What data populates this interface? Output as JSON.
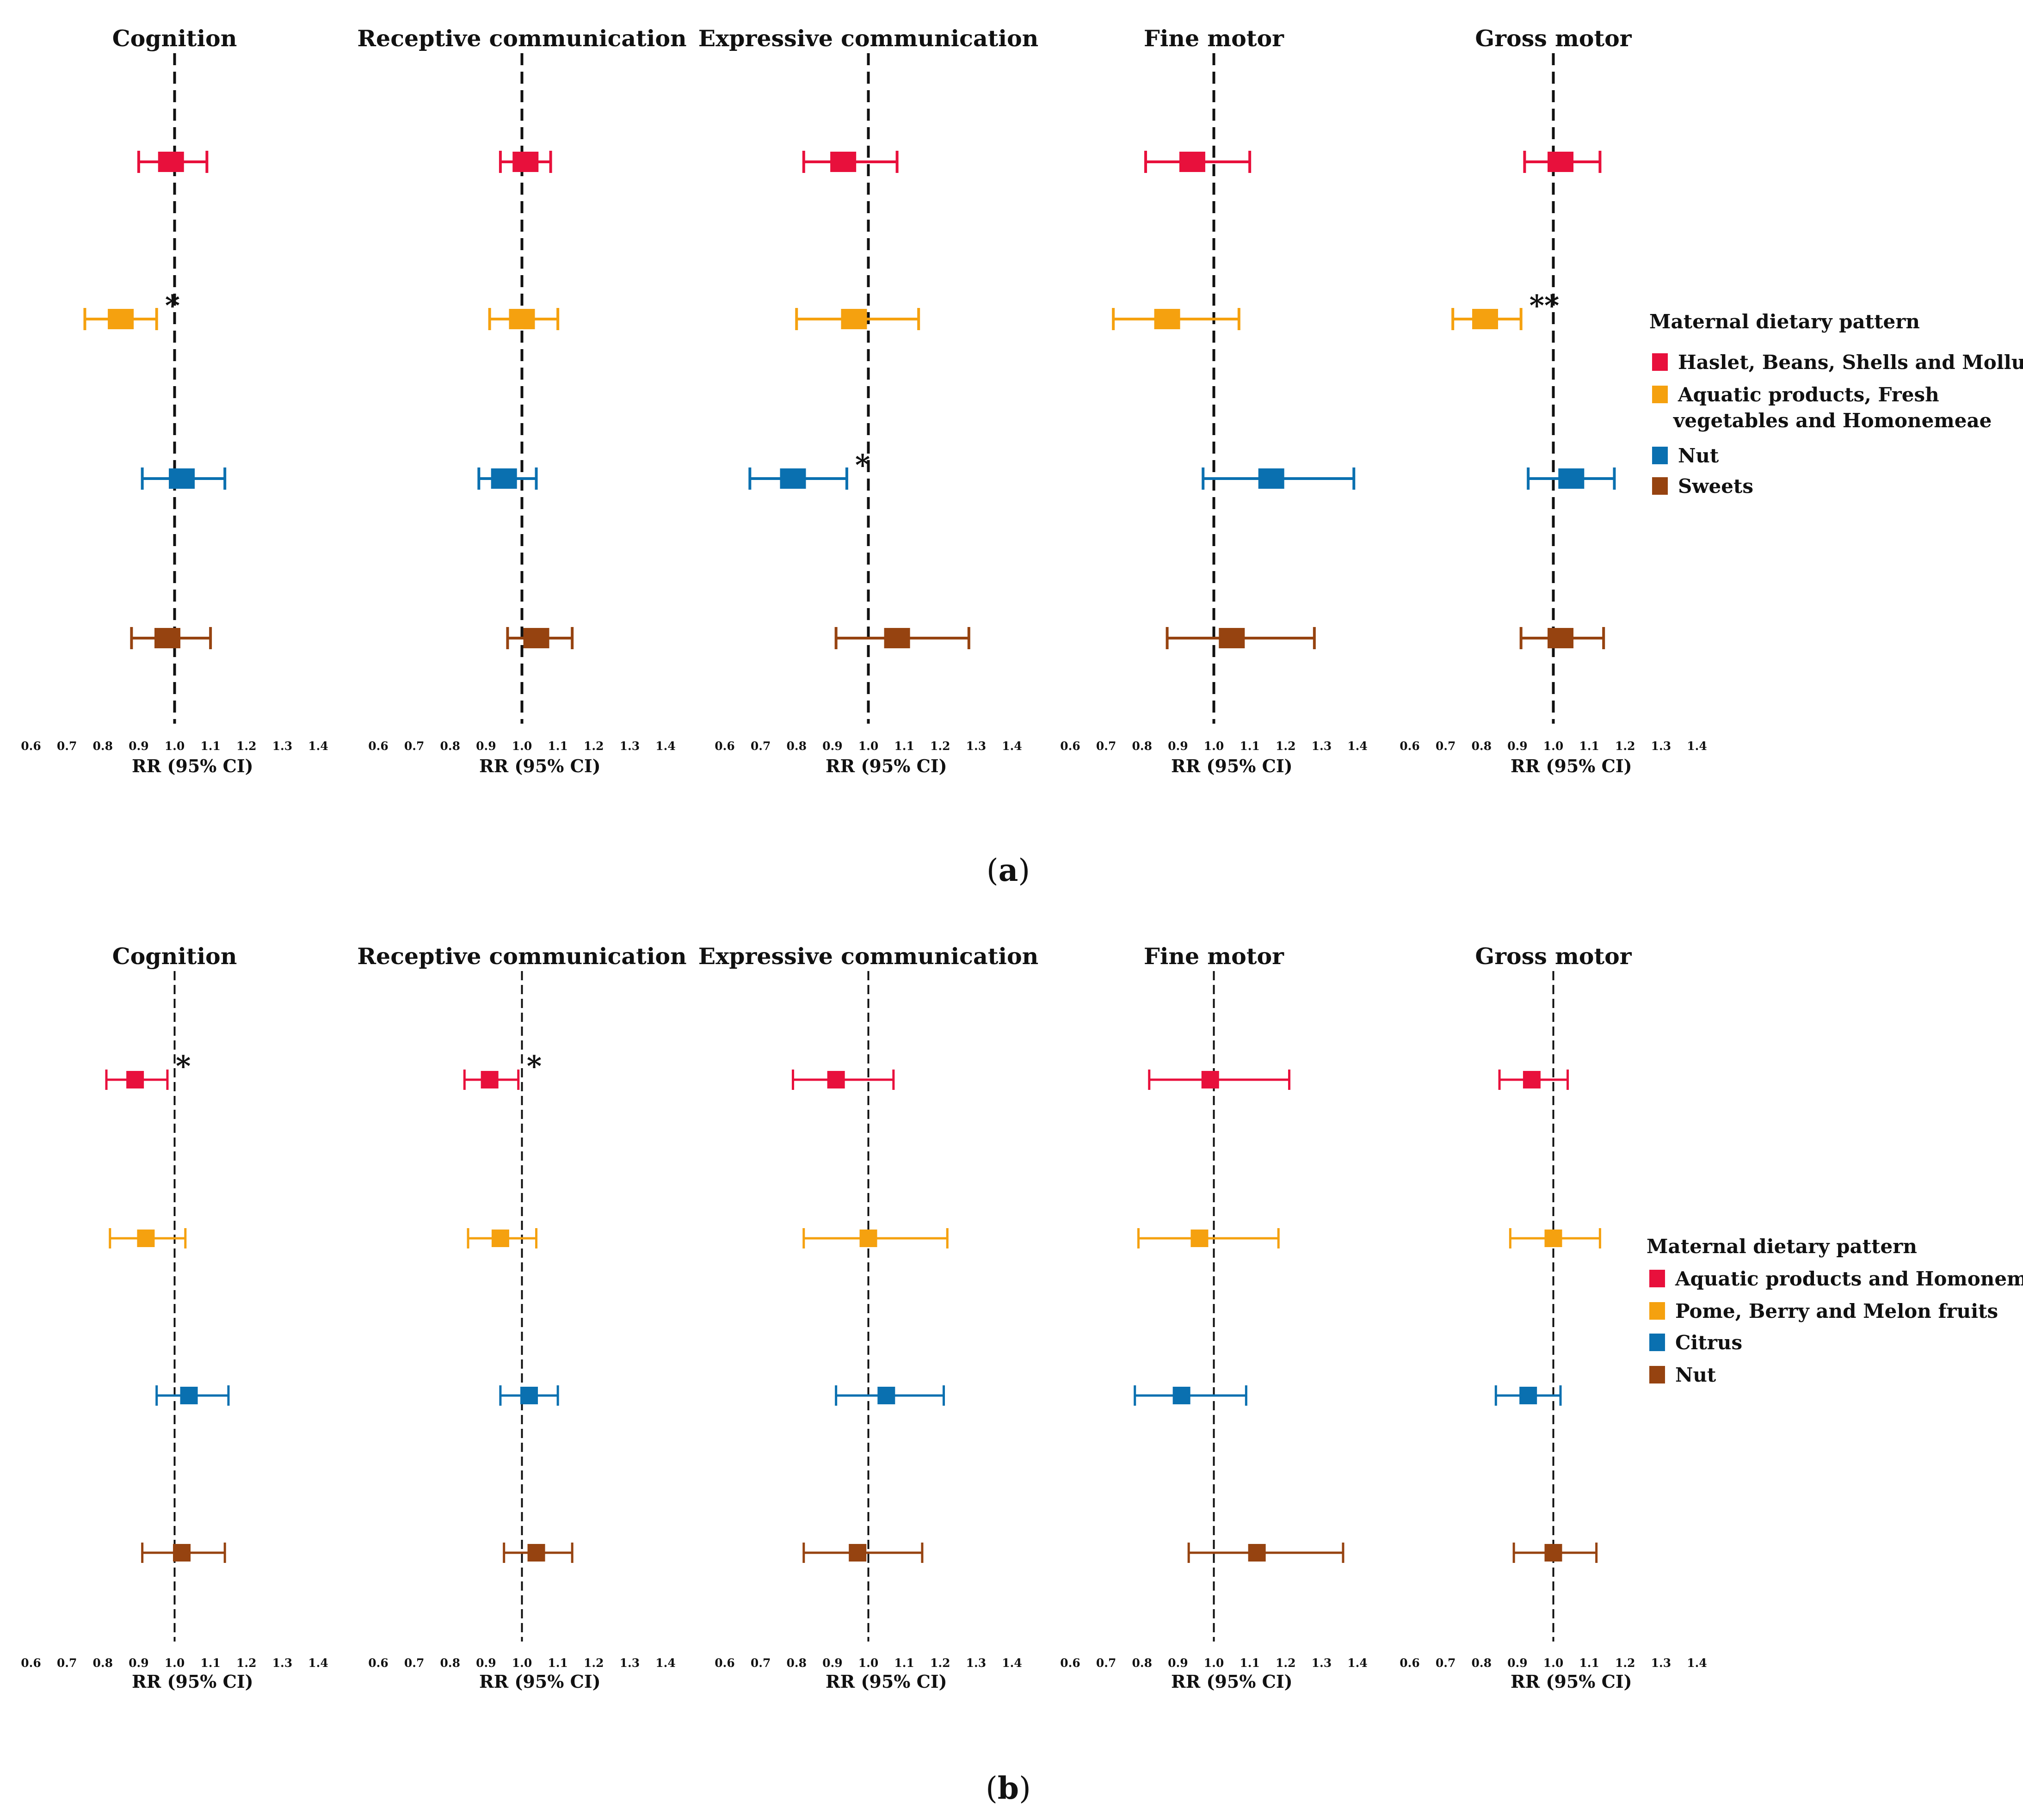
{
  "colors": {
    "red": "#e8103c",
    "orange": "#f5a10f",
    "blue": "#0a70b0",
    "brown": "#964310",
    "ref_line": "#111111"
  },
  "chart_data": [
    {
      "type": "forest",
      "panel_label": "a",
      "xlabel": "RR (95% CI)",
      "xlim": [
        0.6,
        1.4
      ],
      "x_ticks": [
        "0.6",
        "0.7",
        "0.8",
        "0.9",
        "1.0",
        "1.1",
        "1.2",
        "1.3",
        "1.4"
      ],
      "reference_line": 1.0,
      "legend": {
        "title": "Maternal dietary pattern",
        "items": [
          {
            "lines": [
              "Haslet, Beans, Shells and Molluscs"
            ],
            "color": "red"
          },
          {
            "lines": [
              "Aquatic products, Fresh",
              "vegetables and Homonemeae"
            ],
            "color": "orange"
          },
          {
            "lines": [
              "Nut"
            ],
            "color": "blue"
          },
          {
            "lines": [
              "Sweets"
            ],
            "color": "brown"
          }
        ]
      },
      "panels": [
        {
          "title": "Cognition",
          "estimates": [
            {
              "series": 0,
              "rr": 0.99,
              "lo": 0.9,
              "hi": 1.09,
              "sig": ""
            },
            {
              "series": 1,
              "rr": 0.85,
              "lo": 0.75,
              "hi": 0.95,
              "sig": "*"
            },
            {
              "series": 2,
              "rr": 1.02,
              "lo": 0.91,
              "hi": 1.14,
              "sig": ""
            },
            {
              "series": 3,
              "rr": 0.98,
              "lo": 0.88,
              "hi": 1.1,
              "sig": ""
            }
          ]
        },
        {
          "title": "Receptive communication",
          "estimates": [
            {
              "series": 0,
              "rr": 1.01,
              "lo": 0.94,
              "hi": 1.08,
              "sig": ""
            },
            {
              "series": 1,
              "rr": 1.0,
              "lo": 0.91,
              "hi": 1.1,
              "sig": ""
            },
            {
              "series": 2,
              "rr": 0.95,
              "lo": 0.88,
              "hi": 1.04,
              "sig": ""
            },
            {
              "series": 3,
              "rr": 1.04,
              "lo": 0.96,
              "hi": 1.14,
              "sig": ""
            }
          ]
        },
        {
          "title": "Expressive communication",
          "estimates": [
            {
              "series": 0,
              "rr": 0.93,
              "lo": 0.82,
              "hi": 1.08,
              "sig": ""
            },
            {
              "series": 1,
              "rr": 0.96,
              "lo": 0.8,
              "hi": 1.14,
              "sig": ""
            },
            {
              "series": 2,
              "rr": 0.79,
              "lo": 0.67,
              "hi": 0.94,
              "sig": "*"
            },
            {
              "series": 3,
              "rr": 1.08,
              "lo": 0.91,
              "hi": 1.28,
              "sig": ""
            }
          ]
        },
        {
          "title": "Fine motor",
          "estimates": [
            {
              "series": 0,
              "rr": 0.94,
              "lo": 0.81,
              "hi": 1.1,
              "sig": ""
            },
            {
              "series": 1,
              "rr": 0.87,
              "lo": 0.72,
              "hi": 1.07,
              "sig": ""
            },
            {
              "series": 2,
              "rr": 1.16,
              "lo": 0.97,
              "hi": 1.39,
              "sig": ""
            },
            {
              "series": 3,
              "rr": 1.05,
              "lo": 0.87,
              "hi": 1.28,
              "sig": ""
            }
          ]
        },
        {
          "title": "Gross motor",
          "estimates": [
            {
              "series": 0,
              "rr": 1.02,
              "lo": 0.92,
              "hi": 1.13,
              "sig": ""
            },
            {
              "series": 1,
              "rr": 0.81,
              "lo": 0.72,
              "hi": 0.91,
              "sig": "**"
            },
            {
              "series": 2,
              "rr": 1.05,
              "lo": 0.93,
              "hi": 1.17,
              "sig": ""
            },
            {
              "series": 3,
              "rr": 1.02,
              "lo": 0.91,
              "hi": 1.14,
              "sig": ""
            }
          ]
        }
      ]
    },
    {
      "type": "forest",
      "panel_label": "b",
      "xlabel": "RR (95% CI)",
      "xlim": [
        0.6,
        1.4
      ],
      "x_ticks": [
        "0.6",
        "0.7",
        "0.8",
        "0.9",
        "1.0",
        "1.1",
        "1.2",
        "1.3",
        "1.4"
      ],
      "reference_line": 1.0,
      "legend": {
        "title": "Maternal dietary pattern",
        "items": [
          {
            "lines": [
              "Aquatic products and Homonemeae"
            ],
            "color": "red"
          },
          {
            "lines": [
              "Pome, Berry and Melon fruits"
            ],
            "color": "orange"
          },
          {
            "lines": [
              "Citrus"
            ],
            "color": "blue"
          },
          {
            "lines": [
              "Nut"
            ],
            "color": "brown"
          }
        ]
      },
      "panels": [
        {
          "title": "Cognition",
          "estimates": [
            {
              "series": 0,
              "rr": 0.89,
              "lo": 0.81,
              "hi": 0.98,
              "sig": "*"
            },
            {
              "series": 1,
              "rr": 0.92,
              "lo": 0.82,
              "hi": 1.03,
              "sig": ""
            },
            {
              "series": 2,
              "rr": 1.04,
              "lo": 0.95,
              "hi": 1.15,
              "sig": ""
            },
            {
              "series": 3,
              "rr": 1.02,
              "lo": 0.91,
              "hi": 1.14,
              "sig": ""
            }
          ]
        },
        {
          "title": "Receptive communication",
          "estimates": [
            {
              "series": 0,
              "rr": 0.91,
              "lo": 0.84,
              "hi": 0.99,
              "sig": "*"
            },
            {
              "series": 1,
              "rr": 0.94,
              "lo": 0.85,
              "hi": 1.04,
              "sig": ""
            },
            {
              "series": 2,
              "rr": 1.02,
              "lo": 0.94,
              "hi": 1.1,
              "sig": ""
            },
            {
              "series": 3,
              "rr": 1.04,
              "lo": 0.95,
              "hi": 1.14,
              "sig": ""
            }
          ]
        },
        {
          "title": "Expressive communication",
          "estimates": [
            {
              "series": 0,
              "rr": 0.91,
              "lo": 0.79,
              "hi": 1.07,
              "sig": ""
            },
            {
              "series": 1,
              "rr": 1.0,
              "lo": 0.82,
              "hi": 1.22,
              "sig": ""
            },
            {
              "series": 2,
              "rr": 1.05,
              "lo": 0.91,
              "hi": 1.21,
              "sig": ""
            },
            {
              "series": 3,
              "rr": 0.97,
              "lo": 0.82,
              "hi": 1.15,
              "sig": ""
            }
          ]
        },
        {
          "title": "Fine motor",
          "estimates": [
            {
              "series": 0,
              "rr": 0.99,
              "lo": 0.82,
              "hi": 1.21,
              "sig": ""
            },
            {
              "series": 1,
              "rr": 0.96,
              "lo": 0.79,
              "hi": 1.18,
              "sig": ""
            },
            {
              "series": 2,
              "rr": 0.91,
              "lo": 0.78,
              "hi": 1.09,
              "sig": ""
            },
            {
              "series": 3,
              "rr": 1.12,
              "lo": 0.93,
              "hi": 1.36,
              "sig": ""
            }
          ]
        },
        {
          "title": "Gross motor",
          "estimates": [
            {
              "series": 0,
              "rr": 0.94,
              "lo": 0.85,
              "hi": 1.04,
              "sig": ""
            },
            {
              "series": 1,
              "rr": 1.0,
              "lo": 0.88,
              "hi": 1.13,
              "sig": ""
            },
            {
              "series": 2,
              "rr": 0.93,
              "lo": 0.84,
              "hi": 1.02,
              "sig": ""
            },
            {
              "series": 3,
              "rr": 1.0,
              "lo": 0.89,
              "hi": 1.12,
              "sig": ""
            }
          ]
        }
      ]
    }
  ]
}
